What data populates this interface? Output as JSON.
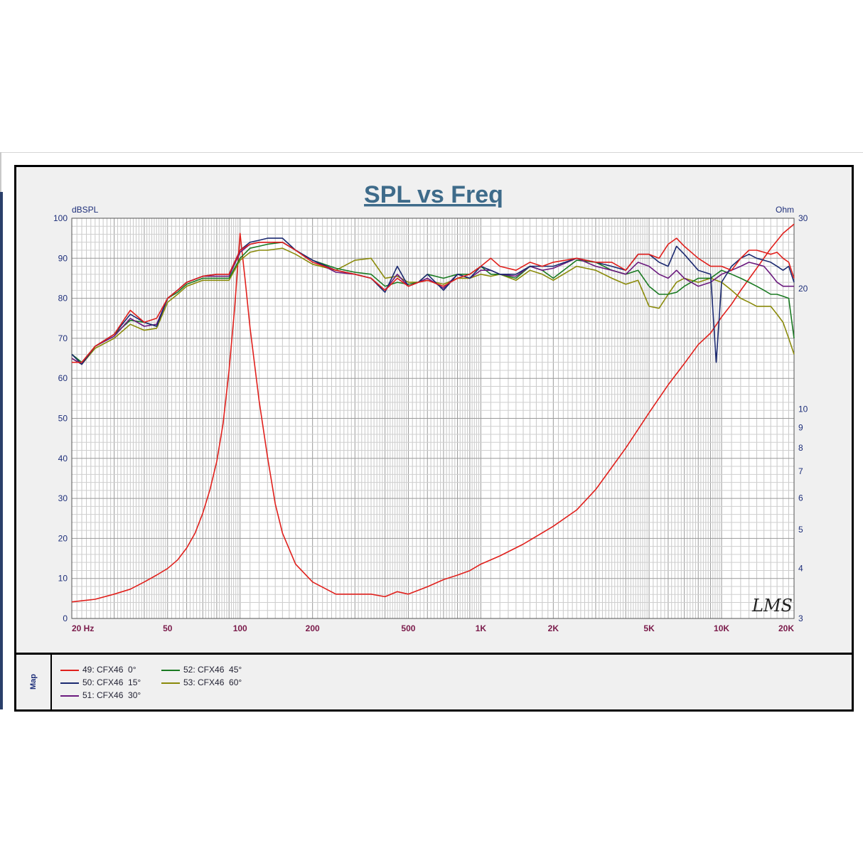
{
  "chart_data": {
    "type": "line",
    "title": "SPL vs Freq",
    "ylabel_left": "dBSPL",
    "ylabel_right": "Ohm",
    "x_scale": "log",
    "xlim": [
      20,
      20000
    ],
    "ylim_left": [
      0,
      100
    ],
    "ylim_right": [
      3,
      30
    ],
    "y_scale_right": "log",
    "grid": true,
    "x_ticks": [
      {
        "value": 20,
        "label": "20  Hz"
      },
      {
        "value": 50,
        "label": "50"
      },
      {
        "value": 100,
        "label": "100"
      },
      {
        "value": 200,
        "label": "200"
      },
      {
        "value": 500,
        "label": "500"
      },
      {
        "value": 1000,
        "label": "1K"
      },
      {
        "value": 2000,
        "label": "2K"
      },
      {
        "value": 5000,
        "label": "5K"
      },
      {
        "value": 10000,
        "label": "10K"
      },
      {
        "value": 20000,
        "label": "20K"
      }
    ],
    "y_ticks_left": [
      0,
      10,
      20,
      30,
      40,
      50,
      60,
      70,
      80,
      90,
      100
    ],
    "y_ticks_right": [
      3,
      4,
      5,
      6,
      7,
      8,
      9,
      10,
      20,
      30
    ],
    "watermark": "LMS",
    "series": [
      {
        "name": "49: CFX46  0°",
        "color": "#e0201c",
        "x": [
          20,
          22,
          25,
          30,
          35,
          40,
          45,
          50,
          55,
          60,
          70,
          80,
          90,
          100,
          110,
          120,
          130,
          150,
          170,
          200,
          250,
          300,
          350,
          400,
          450,
          500,
          550,
          600,
          700,
          800,
          900,
          1000,
          1100,
          1200,
          1400,
          1600,
          1800,
          2000,
          2500,
          3000,
          3500,
          4000,
          4500,
          5000,
          5500,
          6000,
          6500,
          7000,
          8000,
          9000,
          10000,
          11000,
          12000,
          13000,
          14000,
          15000,
          16000,
          17000,
          18000,
          19000,
          20000
        ],
        "y": [
          64,
          64,
          68,
          71,
          77,
          74,
          75,
          80,
          82,
          84,
          85.5,
          86,
          86,
          92,
          93.5,
          94,
          94,
          94,
          92,
          89,
          87,
          86,
          85,
          82,
          85,
          83,
          84,
          84.5,
          83,
          85,
          86,
          88,
          90,
          88,
          87,
          89,
          88,
          89,
          90,
          89,
          89,
          87,
          91,
          91,
          90,
          93.5,
          95,
          93,
          90,
          88,
          88,
          87,
          90,
          92,
          92,
          91.5,
          91,
          91.5,
          90,
          89,
          85
        ]
      },
      {
        "name": "50: CFX46  15°",
        "color": "#1c2a70",
        "x": [
          20,
          22,
          25,
          30,
          35,
          40,
          45,
          50,
          55,
          60,
          70,
          80,
          90,
          100,
          110,
          120,
          130,
          150,
          170,
          200,
          250,
          300,
          350,
          400,
          450,
          500,
          550,
          600,
          700,
          800,
          900,
          1000,
          1100,
          1200,
          1400,
          1600,
          1800,
          2000,
          2500,
          3000,
          3500,
          4000,
          4500,
          5000,
          5500,
          6000,
          6500,
          7000,
          8000,
          9000,
          9500,
          10000,
          11000,
          12000,
          13000,
          14000,
          15000,
          16000,
          17000,
          18000,
          19000,
          20000
        ],
        "y": [
          66,
          63.5,
          68,
          71,
          76,
          74,
          73,
          80,
          82,
          84,
          85.5,
          86,
          86,
          92,
          94,
          94.5,
          95,
          95,
          92,
          89.5,
          87,
          86,
          85,
          81.5,
          88,
          83,
          84,
          86,
          82,
          86,
          85,
          88,
          87,
          86,
          86,
          88,
          88,
          88,
          90,
          89,
          88,
          87,
          91,
          91,
          89,
          88,
          93,
          91,
          87,
          86,
          64,
          84,
          88,
          90,
          91,
          90,
          89.5,
          89,
          88,
          87,
          88,
          84
        ]
      },
      {
        "name": "51: CFX46  30°",
        "color": "#6b1a7e",
        "x": [
          20,
          22,
          25,
          30,
          35,
          40,
          45,
          50,
          55,
          60,
          70,
          80,
          90,
          100,
          110,
          120,
          130,
          150,
          170,
          200,
          250,
          300,
          350,
          400,
          450,
          500,
          550,
          600,
          700,
          800,
          900,
          1000,
          1100,
          1200,
          1400,
          1600,
          1800,
          2000,
          2500,
          3000,
          3500,
          4000,
          4500,
          5000,
          5500,
          6000,
          6500,
          7000,
          8000,
          9000,
          10000,
          11000,
          12000,
          13000,
          14000,
          15000,
          16000,
          17000,
          18000,
          19000,
          20000
        ],
        "y": [
          65,
          63.5,
          68,
          70.5,
          75,
          73,
          73.5,
          80,
          82,
          84,
          85.5,
          85.5,
          85.5,
          91.5,
          93.5,
          94,
          94,
          94,
          92,
          89.5,
          86.5,
          86,
          85,
          82,
          86,
          83,
          84,
          85,
          82.5,
          86,
          85,
          87,
          87,
          86,
          85.5,
          88,
          87,
          87.5,
          90,
          88,
          87,
          86,
          89,
          88,
          86,
          85,
          87,
          85,
          83,
          84,
          86,
          87,
          88,
          89,
          88.5,
          88,
          86,
          84,
          83,
          83,
          83
        ]
      },
      {
        "name": "52: CFX46  45°",
        "color": "#1a7a22",
        "x": [
          20,
          22,
          25,
          30,
          35,
          40,
          45,
          50,
          55,
          60,
          70,
          80,
          90,
          100,
          110,
          120,
          130,
          150,
          170,
          200,
          250,
          300,
          350,
          400,
          450,
          500,
          550,
          600,
          700,
          800,
          900,
          1000,
          1100,
          1200,
          1400,
          1600,
          1800,
          2000,
          2500,
          3000,
          3500,
          4000,
          4500,
          5000,
          5500,
          6000,
          6500,
          7000,
          8000,
          9000,
          10000,
          11000,
          12000,
          13000,
          14000,
          15000,
          16000,
          17000,
          18000,
          19000,
          20000
        ],
        "y": [
          66,
          64,
          68,
          71,
          74.5,
          74,
          73,
          80,
          81.5,
          83.5,
          85,
          85,
          85,
          90,
          92.5,
          93,
          93.5,
          94,
          92,
          89.5,
          87.5,
          86.5,
          86,
          83,
          84,
          83.5,
          84,
          86,
          85,
          86,
          86,
          88,
          86,
          86,
          85,
          88,
          87,
          85,
          89.5,
          89,
          87,
          86,
          87,
          83,
          81,
          81,
          81.5,
          83,
          85,
          85,
          87,
          86,
          85,
          84,
          83,
          82,
          81,
          81,
          80.5,
          80,
          70
        ]
      },
      {
        "name": "53: CFX46  60°",
        "color": "#8a8a0a",
        "x": [
          20,
          22,
          25,
          30,
          35,
          40,
          45,
          50,
          55,
          60,
          70,
          80,
          90,
          100,
          110,
          120,
          130,
          150,
          170,
          200,
          250,
          300,
          350,
          400,
          450,
          500,
          550,
          600,
          700,
          800,
          900,
          1000,
          1100,
          1200,
          1400,
          1600,
          1800,
          2000,
          2500,
          3000,
          3500,
          4000,
          4500,
          5000,
          5500,
          6000,
          6500,
          7000,
          8000,
          9000,
          10000,
          11000,
          12000,
          13000,
          14000,
          15000,
          16000,
          17000,
          18000,
          19000,
          20000
        ],
        "y": [
          65,
          63.5,
          67.5,
          70,
          73.5,
          72,
          72.5,
          79,
          81,
          83,
          84.5,
          84.5,
          84.5,
          89.5,
          91.5,
          92,
          92,
          92.5,
          91,
          88.5,
          87,
          89.5,
          90,
          85,
          85.5,
          84,
          84,
          84.5,
          83.5,
          85,
          85,
          86,
          85.5,
          86,
          84.5,
          87,
          86,
          84.5,
          88,
          87,
          85,
          83.5,
          84.5,
          78,
          77.5,
          81,
          84,
          85,
          84,
          85,
          84,
          82,
          80,
          79,
          78,
          78,
          78,
          76,
          74,
          70,
          66
        ]
      },
      {
        "name": "impedance",
        "color": "#e0201c",
        "axis": "right",
        "x": [
          20,
          25,
          30,
          35,
          40,
          45,
          50,
          55,
          60,
          65,
          70,
          75,
          80,
          85,
          90,
          95,
          100,
          105,
          110,
          120,
          130,
          140,
          150,
          170,
          200,
          250,
          300,
          350,
          400,
          450,
          500,
          600,
          700,
          800,
          900,
          1000,
          1200,
          1500,
          2000,
          2500,
          3000,
          4000,
          5000,
          6000,
          7000,
          8000,
          9000,
          10000,
          11000,
          12000,
          14000,
          16000,
          18000,
          20000
        ],
        "y": [
          3.3,
          3.35,
          3.45,
          3.55,
          3.7,
          3.85,
          4.0,
          4.2,
          4.5,
          4.9,
          5.5,
          6.3,
          7.4,
          9.2,
          12.5,
          18,
          27.5,
          21,
          16,
          10.5,
          7.6,
          5.8,
          4.9,
          4.1,
          3.7,
          3.45,
          3.45,
          3.45,
          3.4,
          3.5,
          3.45,
          3.6,
          3.75,
          3.85,
          3.95,
          4.1,
          4.3,
          4.6,
          5.1,
          5.6,
          6.3,
          8.0,
          9.8,
          11.5,
          13.0,
          14.5,
          15.5,
          17.0,
          18.3,
          19.8,
          22.5,
          25.2,
          27.5,
          29.0
        ]
      }
    ]
  }
}
